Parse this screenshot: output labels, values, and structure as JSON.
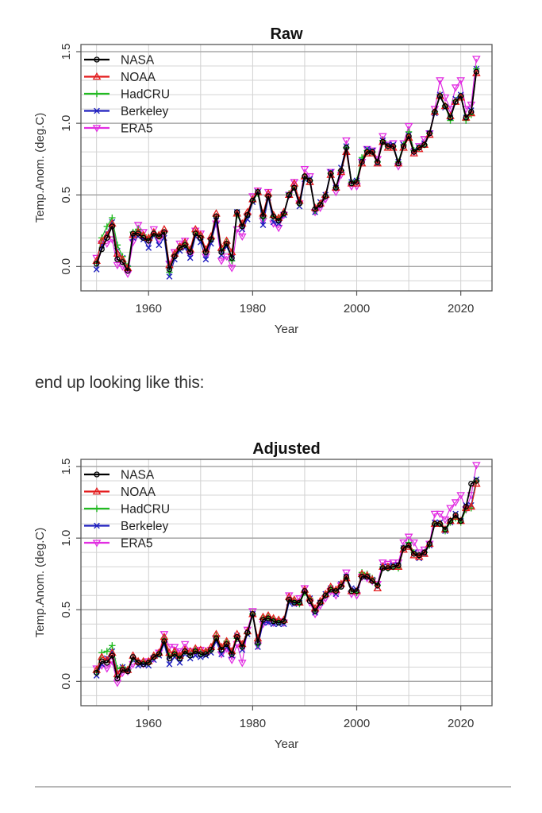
{
  "caption": "end up looking like this:",
  "legend_entries": [
    {
      "name": "NASA",
      "color": "#000000",
      "marker": "circle"
    },
    {
      "name": "NOAA",
      "color": "#e41a1c",
      "marker": "triangle-up"
    },
    {
      "name": "HadCRU",
      "color": "#22bb22",
      "marker": "plus"
    },
    {
      "name": "Berkeley",
      "color": "#1f1fbf",
      "marker": "x"
    },
    {
      "name": "ERA5",
      "color": "#e22ee2",
      "marker": "triangle-down"
    }
  ],
  "chart_data": [
    {
      "type": "line",
      "title": "Raw",
      "xlabel": "Year",
      "ylabel": "Temp.Anom. (deg.C)",
      "xlim": [
        1947,
        2026
      ],
      "ylim": [
        -0.17,
        1.55
      ],
      "xticks": [
        "1960",
        "1980",
        "2000",
        "2020"
      ],
      "xtick_values": [
        1960,
        1980,
        2000,
        2020
      ],
      "yticks": [
        "0.0",
        "0.5",
        "1.0",
        "1.5"
      ],
      "ytick_values": [
        0.0,
        0.5,
        1.0,
        1.5
      ],
      "grid": true,
      "legend": "top-left",
      "x": [
        1950,
        1951,
        1952,
        1953,
        1954,
        1955,
        1956,
        1957,
        1958,
        1959,
        1960,
        1961,
        1962,
        1963,
        1964,
        1965,
        1966,
        1967,
        1968,
        1969,
        1970,
        1971,
        1972,
        1973,
        1974,
        1975,
        1976,
        1977,
        1978,
        1979,
        1980,
        1981,
        1982,
        1983,
        1984,
        1985,
        1986,
        1987,
        1988,
        1989,
        1990,
        1991,
        1992,
        1993,
        1994,
        1995,
        1996,
        1997,
        1998,
        1999,
        2000,
        2001,
        2002,
        2003,
        2004,
        2005,
        2006,
        2007,
        2008,
        2009,
        2010,
        2011,
        2012,
        2013,
        2014,
        2015,
        2016,
        2017,
        2018,
        2019,
        2020,
        2021,
        2022,
        2023
      ],
      "series": [
        {
          "name": "NASA",
          "values": [
            0.02,
            0.12,
            0.2,
            0.28,
            0.05,
            0.03,
            -0.03,
            0.23,
            0.23,
            0.2,
            0.18,
            0.23,
            0.21,
            0.24,
            -0.02,
            0.07,
            0.13,
            0.15,
            0.1,
            0.23,
            0.2,
            0.1,
            0.19,
            0.35,
            0.1,
            0.16,
            0.06,
            0.38,
            0.28,
            0.36,
            0.46,
            0.52,
            0.35,
            0.49,
            0.35,
            0.32,
            0.37,
            0.5,
            0.55,
            0.44,
            0.63,
            0.6,
            0.4,
            0.43,
            0.49,
            0.65,
            0.55,
            0.67,
            0.83,
            0.58,
            0.59,
            0.73,
            0.8,
            0.8,
            0.73,
            0.87,
            0.84,
            0.84,
            0.72,
            0.84,
            0.91,
            0.8,
            0.83,
            0.85,
            0.93,
            1.08,
            1.19,
            1.12,
            1.04,
            1.15,
            1.19,
            1.04,
            1.08,
            1.36
          ]
        },
        {
          "name": "NOAA",
          "values": [
            0.04,
            0.18,
            0.22,
            0.3,
            0.09,
            0.05,
            -0.01,
            0.22,
            0.24,
            0.22,
            0.2,
            0.24,
            0.22,
            0.26,
            0.01,
            0.09,
            0.14,
            0.17,
            0.12,
            0.26,
            0.22,
            0.12,
            0.21,
            0.37,
            0.13,
            0.18,
            0.1,
            0.37,
            0.3,
            0.38,
            0.47,
            0.52,
            0.37,
            0.51,
            0.36,
            0.34,
            0.38,
            0.5,
            0.58,
            0.46,
            0.63,
            0.59,
            0.41,
            0.44,
            0.5,
            0.64,
            0.55,
            0.66,
            0.8,
            0.58,
            0.58,
            0.72,
            0.79,
            0.79,
            0.72,
            0.87,
            0.83,
            0.83,
            0.72,
            0.83,
            0.9,
            0.79,
            0.82,
            0.85,
            0.92,
            1.08,
            1.19,
            1.12,
            1.05,
            1.15,
            1.18,
            1.04,
            1.07,
            1.35
          ]
        },
        {
          "name": "HadCRU",
          "values": [
            0.03,
            0.2,
            0.28,
            0.34,
            0.15,
            0.07,
            0.0,
            0.24,
            0.26,
            0.22,
            0.19,
            0.23,
            0.21,
            0.24,
            -0.04,
            0.08,
            0.13,
            0.16,
            0.11,
            0.24,
            0.21,
            0.1,
            0.19,
            0.35,
            0.11,
            0.17,
            0.04,
            0.36,
            0.29,
            0.36,
            0.46,
            0.51,
            0.34,
            0.49,
            0.35,
            0.33,
            0.37,
            0.51,
            0.56,
            0.44,
            0.62,
            0.6,
            0.39,
            0.44,
            0.49,
            0.65,
            0.55,
            0.67,
            0.83,
            0.59,
            0.6,
            0.76,
            0.81,
            0.8,
            0.73,
            0.88,
            0.84,
            0.84,
            0.73,
            0.85,
            0.94,
            0.81,
            0.83,
            0.85,
            0.93,
            1.08,
            1.2,
            1.12,
            1.02,
            1.16,
            1.19,
            1.02,
            1.06,
            1.38
          ]
        },
        {
          "name": "Berkeley",
          "values": [
            -0.02,
            0.15,
            0.23,
            0.31,
            0.11,
            0.06,
            -0.01,
            0.2,
            0.21,
            0.19,
            0.13,
            0.22,
            0.15,
            0.2,
            -0.07,
            0.05,
            0.11,
            0.13,
            0.06,
            0.21,
            0.17,
            0.05,
            0.16,
            0.32,
            0.08,
            0.14,
            0.06,
            0.38,
            0.26,
            0.33,
            0.45,
            0.52,
            0.29,
            0.48,
            0.31,
            0.3,
            0.36,
            0.5,
            0.55,
            0.42,
            0.61,
            0.61,
            0.38,
            0.45,
            0.5,
            0.66,
            0.55,
            0.69,
            0.84,
            0.59,
            0.6,
            0.74,
            0.82,
            0.81,
            0.72,
            0.88,
            0.85,
            0.85,
            0.73,
            0.85,
            0.92,
            0.81,
            0.83,
            0.86,
            0.93,
            1.07,
            1.2,
            1.11,
            1.04,
            1.17,
            1.2,
            1.04,
            1.09,
            1.38
          ]
        },
        {
          "name": "ERA5",
          "values": [
            0.06,
            0.16,
            0.16,
            0.19,
            0.01,
            0.0,
            -0.05,
            0.17,
            0.29,
            0.24,
            0.18,
            0.26,
            0.19,
            0.23,
            0.02,
            0.1,
            0.16,
            0.18,
            0.08,
            0.25,
            0.23,
            0.07,
            0.18,
            0.3,
            0.04,
            0.07,
            -0.01,
            0.26,
            0.21,
            0.35,
            0.49,
            0.53,
            0.32,
            0.52,
            0.3,
            0.27,
            0.36,
            0.5,
            0.59,
            0.44,
            0.68,
            0.63,
            0.38,
            0.41,
            0.47,
            0.66,
            0.52,
            0.64,
            0.88,
            0.56,
            0.56,
            0.73,
            0.82,
            0.81,
            0.75,
            0.91,
            0.85,
            0.86,
            0.7,
            0.86,
            0.98,
            0.8,
            0.84,
            0.89,
            0.93,
            1.1,
            1.3,
            1.18,
            1.1,
            1.25,
            1.3,
            1.1,
            1.13,
            1.45
          ]
        }
      ]
    },
    {
      "type": "line",
      "title": "Adjusted",
      "xlabel": "Year",
      "ylabel": "Temp.Anom. (deg.C)",
      "xlim": [
        1947,
        2026
      ],
      "ylim": [
        -0.17,
        1.55
      ],
      "xticks": [
        "1960",
        "1980",
        "2000",
        "2020"
      ],
      "xtick_values": [
        1960,
        1980,
        2000,
        2020
      ],
      "yticks": [
        "0.0",
        "0.5",
        "1.0",
        "1.5"
      ],
      "ytick_values": [
        0.0,
        0.5,
        1.0,
        1.5
      ],
      "grid": true,
      "legend": "top-left",
      "x": [
        1950,
        1951,
        1952,
        1953,
        1954,
        1955,
        1956,
        1957,
        1958,
        1959,
        1960,
        1961,
        1962,
        1963,
        1964,
        1965,
        1966,
        1967,
        1968,
        1969,
        1970,
        1971,
        1972,
        1973,
        1974,
        1975,
        1976,
        1977,
        1978,
        1979,
        1980,
        1981,
        1982,
        1983,
        1984,
        1985,
        1986,
        1987,
        1988,
        1989,
        1990,
        1991,
        1992,
        1993,
        1994,
        1995,
        1996,
        1997,
        1998,
        1999,
        2000,
        2001,
        2002,
        2003,
        2004,
        2005,
        2006,
        2007,
        2008,
        2009,
        2010,
        2011,
        2012,
        2013,
        2014,
        2015,
        2016,
        2017,
        2018,
        2019,
        2020,
        2021,
        2022,
        2023
      ],
      "series": [
        {
          "name": "NASA",
          "values": [
            0.06,
            0.14,
            0.13,
            0.18,
            0.02,
            0.08,
            0.07,
            0.17,
            0.13,
            0.12,
            0.13,
            0.17,
            0.19,
            0.28,
            0.16,
            0.19,
            0.16,
            0.21,
            0.18,
            0.21,
            0.19,
            0.19,
            0.22,
            0.3,
            0.22,
            0.26,
            0.19,
            0.31,
            0.24,
            0.34,
            0.47,
            0.27,
            0.43,
            0.44,
            0.42,
            0.41,
            0.42,
            0.57,
            0.55,
            0.55,
            0.63,
            0.56,
            0.49,
            0.55,
            0.6,
            0.64,
            0.63,
            0.66,
            0.73,
            0.63,
            0.63,
            0.73,
            0.73,
            0.7,
            0.67,
            0.79,
            0.79,
            0.8,
            0.81,
            0.93,
            0.95,
            0.89,
            0.88,
            0.9,
            0.96,
            1.1,
            1.1,
            1.06,
            1.12,
            1.16,
            1.12,
            1.22,
            1.38,
            1.4
          ]
        },
        {
          "name": "NOAA",
          "values": [
            0.08,
            0.17,
            0.15,
            0.2,
            0.05,
            0.09,
            0.08,
            0.18,
            0.14,
            0.14,
            0.14,
            0.18,
            0.2,
            0.31,
            0.2,
            0.21,
            0.18,
            0.22,
            0.21,
            0.23,
            0.22,
            0.21,
            0.24,
            0.33,
            0.24,
            0.28,
            0.21,
            0.33,
            0.26,
            0.35,
            0.47,
            0.3,
            0.45,
            0.46,
            0.44,
            0.43,
            0.43,
            0.59,
            0.57,
            0.55,
            0.64,
            0.58,
            0.51,
            0.56,
            0.61,
            0.66,
            0.64,
            0.68,
            0.72,
            0.63,
            0.63,
            0.75,
            0.74,
            0.71,
            0.65,
            0.8,
            0.8,
            0.8,
            0.8,
            0.92,
            0.94,
            0.88,
            0.87,
            0.89,
            0.96,
            1.1,
            1.1,
            1.06,
            1.12,
            1.15,
            1.12,
            1.21,
            1.22,
            1.38
          ]
        },
        {
          "name": "HadCRU",
          "values": [
            0.07,
            0.2,
            0.21,
            0.25,
            0.09,
            0.1,
            0.08,
            0.16,
            0.14,
            0.14,
            0.13,
            0.17,
            0.19,
            0.3,
            0.18,
            0.2,
            0.17,
            0.21,
            0.19,
            0.22,
            0.2,
            0.21,
            0.22,
            0.32,
            0.23,
            0.28,
            0.2,
            0.3,
            0.25,
            0.34,
            0.47,
            0.26,
            0.44,
            0.45,
            0.43,
            0.42,
            0.42,
            0.57,
            0.56,
            0.54,
            0.62,
            0.58,
            0.49,
            0.55,
            0.6,
            0.65,
            0.63,
            0.67,
            0.72,
            0.63,
            0.62,
            0.76,
            0.75,
            0.72,
            0.67,
            0.8,
            0.79,
            0.8,
            0.79,
            0.93,
            0.97,
            0.9,
            0.88,
            0.9,
            0.95,
            1.1,
            1.1,
            1.05,
            1.11,
            1.14,
            1.11,
            1.2,
            1.21,
            1.4
          ]
        },
        {
          "name": "Berkeley",
          "values": [
            0.04,
            0.12,
            0.16,
            0.21,
            0.06,
            0.1,
            0.08,
            0.15,
            0.11,
            0.12,
            0.11,
            0.15,
            0.18,
            0.26,
            0.12,
            0.17,
            0.13,
            0.19,
            0.16,
            0.18,
            0.17,
            0.18,
            0.2,
            0.28,
            0.19,
            0.24,
            0.18,
            0.32,
            0.22,
            0.33,
            0.47,
            0.24,
            0.41,
            0.41,
            0.4,
            0.4,
            0.4,
            0.55,
            0.54,
            0.55,
            0.62,
            0.58,
            0.48,
            0.55,
            0.61,
            0.65,
            0.61,
            0.68,
            0.73,
            0.65,
            0.64,
            0.74,
            0.73,
            0.71,
            0.66,
            0.8,
            0.8,
            0.81,
            0.81,
            0.93,
            0.95,
            0.9,
            0.86,
            0.89,
            0.95,
            1.11,
            1.11,
            1.05,
            1.11,
            1.17,
            1.12,
            1.23,
            1.23,
            1.41
          ]
        },
        {
          "name": "ERA5",
          "values": [
            0.09,
            0.11,
            0.09,
            0.14,
            -0.01,
            0.06,
            0.07,
            0.12,
            0.13,
            0.12,
            0.14,
            0.16,
            0.2,
            0.33,
            0.24,
            0.24,
            0.21,
            0.26,
            0.21,
            0.21,
            0.22,
            0.2,
            0.22,
            0.3,
            0.19,
            0.23,
            0.15,
            0.26,
            0.13,
            0.36,
            0.49,
            0.25,
            0.4,
            0.42,
            0.41,
            0.42,
            0.41,
            0.6,
            0.55,
            0.58,
            0.65,
            0.55,
            0.47,
            0.53,
            0.58,
            0.63,
            0.6,
            0.67,
            0.76,
            0.61,
            0.6,
            0.73,
            0.72,
            0.7,
            0.68,
            0.83,
            0.82,
            0.83,
            0.83,
            0.97,
            1.01,
            0.97,
            0.9,
            0.92,
            0.96,
            1.17,
            1.17,
            1.13,
            1.21,
            1.25,
            1.3,
            1.2,
            1.3,
            1.51
          ]
        }
      ]
    }
  ]
}
